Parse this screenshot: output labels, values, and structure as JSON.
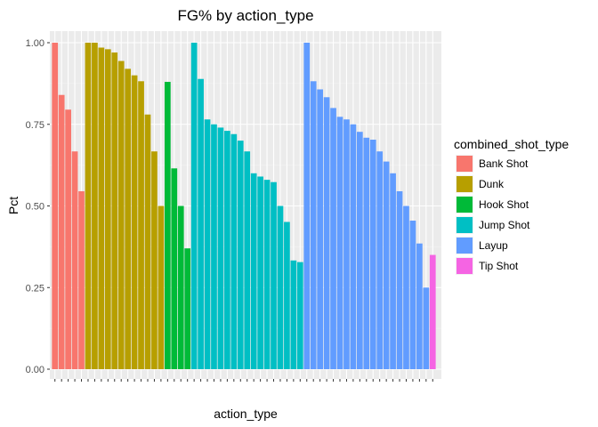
{
  "chart_data": {
    "type": "bar",
    "title": "FG% by action_type",
    "xlabel": "action_type",
    "ylabel": "Pct",
    "ylim": [
      0,
      1.05
    ],
    "yticks": [
      0,
      0.25,
      0.5,
      0.75,
      1.0
    ],
    "ytick_labels": [
      "0.00",
      "0.25",
      "0.50",
      "0.75",
      "1.00"
    ],
    "grid": true,
    "legend_position": "right",
    "legend_title": "combined_shot_type",
    "series": [
      {
        "name": "Bank Shot",
        "color": "#F8766D",
        "values": [
          1.0,
          0.84,
          0.795,
          0.667,
          0.545
        ]
      },
      {
        "name": "Dunk",
        "color": "#B79F00",
        "values": [
          1.0,
          1.0,
          0.985,
          0.98,
          0.97,
          0.944,
          0.92,
          0.9,
          0.882,
          0.78,
          0.667,
          0.5
        ]
      },
      {
        "name": "Hook Shot",
        "color": "#00BA38",
        "values": [
          0.88,
          0.615,
          0.5,
          0.37
        ]
      },
      {
        "name": "Jump Shot",
        "color": "#00BFC4",
        "values": [
          1.0,
          0.889,
          0.765,
          0.75,
          0.74,
          0.73,
          0.72,
          0.7,
          0.667,
          0.6,
          0.59,
          0.58,
          0.573,
          0.5,
          0.451,
          0.333,
          0.328
        ]
      },
      {
        "name": "Layup",
        "color": "#619CFF",
        "values": [
          1.0,
          0.882,
          0.857,
          0.833,
          0.8,
          0.773,
          0.765,
          0.75,
          0.727,
          0.709,
          0.703,
          0.667,
          0.636,
          0.6,
          0.545,
          0.5,
          0.455,
          0.385,
          0.25
        ]
      },
      {
        "name": "Tip Shot",
        "color": "#F564E3",
        "values": [
          0.35
        ]
      }
    ]
  }
}
